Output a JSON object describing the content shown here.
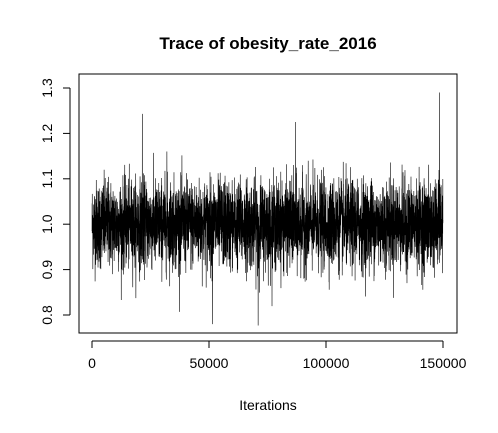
{
  "chart_data": {
    "type": "line",
    "title": "Trace of obesity_rate_2016",
    "xlabel": "Iterations",
    "ylabel": "",
    "xlim": [
      0,
      150000
    ],
    "ylim": [
      0.78,
      1.29
    ],
    "x_ticks": [
      0,
      50000,
      100000,
      150000
    ],
    "x_tick_labels": [
      "0",
      "50000",
      "100000",
      "150000"
    ],
    "y_ticks": [
      0.8,
      0.9,
      1.0,
      1.1,
      1.2,
      1.3
    ],
    "y_tick_labels": [
      "0.8",
      "0.9",
      "1.0",
      "1.1",
      "1.2",
      "1.3"
    ],
    "grid": false,
    "legend": "none",
    "series_color": "#000000",
    "series": [
      {
        "n_iterations": 150000,
        "mean": 1.0,
        "typical_band": [
          0.88,
          1.12
        ],
        "min": 0.777,
        "max": 1.29,
        "notable_extremes": [
          {
            "x": 21500,
            "y": 1.243
          },
          {
            "x": 32000,
            "y": 1.16
          },
          {
            "x": 51500,
            "y": 0.78
          },
          {
            "x": 71000,
            "y": 0.777
          },
          {
            "x": 87000,
            "y": 1.225
          },
          {
            "x": 148500,
            "y": 1.29
          }
        ]
      }
    ]
  }
}
